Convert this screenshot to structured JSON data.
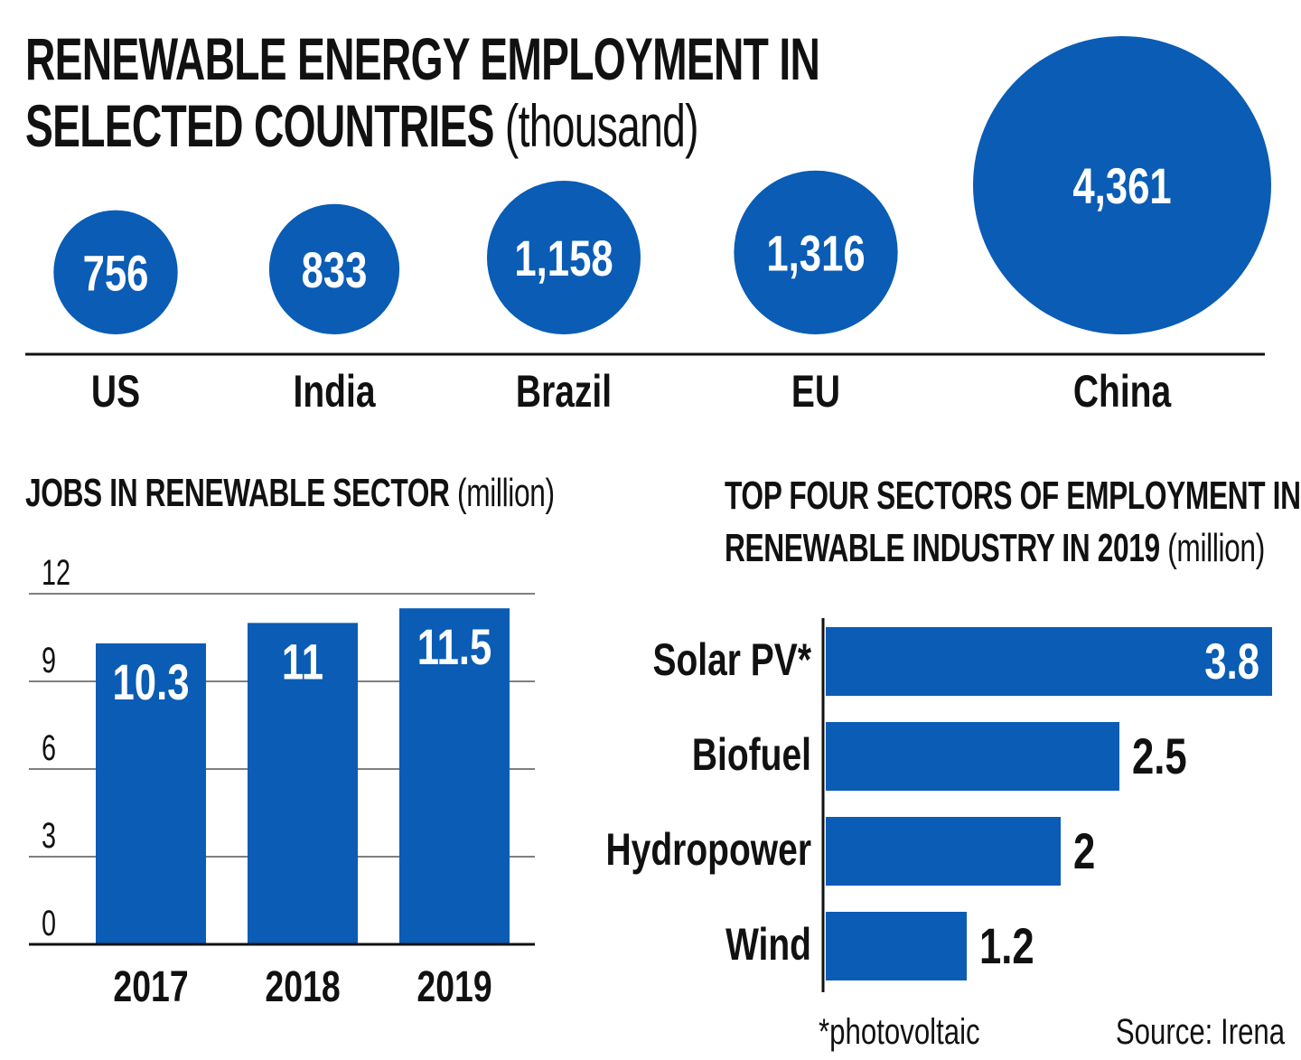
{
  "colors": {
    "accent": "#0a5cb5",
    "text": "#111111",
    "bar_label": "#ffffff"
  },
  "titles": {
    "main_bold_line1": "RENEWABLE ENERGY EMPLOYMENT IN",
    "main_bold_line2": "SELECTED COUNTRIES",
    "main_unit": "(thousand)",
    "bar_bold": "JOBS IN RENEWABLE SECTOR",
    "bar_unit": "(million)",
    "hbar_bold_line1": "TOP FOUR SECTORS OF EMPLOYMENT IN",
    "hbar_bold_line2": "RENEWABLE INDUSTRY IN 2019",
    "hbar_unit": "(million)"
  },
  "footnote": "*photovoltaic",
  "source": "Source: Irena",
  "chart_data": [
    {
      "type": "bubble",
      "title": "RENEWABLE ENERGY EMPLOYMENT IN SELECTED COUNTRIES (thousand)",
      "categories": [
        "US",
        "India",
        "Brazil",
        "EU",
        "China"
      ],
      "values": [
        756,
        833,
        1158,
        1316,
        4361
      ],
      "labels": [
        "756",
        "833",
        "1,158",
        "1,316",
        "4,361"
      ]
    },
    {
      "type": "bar",
      "title": "JOBS IN RENEWABLE SECTOR (million)",
      "categories": [
        "2017",
        "2018",
        "2019"
      ],
      "values": [
        10.3,
        11,
        11.5
      ],
      "labels": [
        "10.3",
        "11",
        "11.5"
      ],
      "ylim": [
        0,
        12
      ],
      "yticks": [
        "0",
        "3",
        "6",
        "9",
        "12"
      ],
      "grid": true
    },
    {
      "type": "bar",
      "orientation": "horizontal",
      "title": "TOP FOUR SECTORS OF EMPLOYMENT IN RENEWABLE INDUSTRY IN 2019 (million)",
      "categories": [
        "Solar PV*",
        "Biofuel",
        "Hydropower",
        "Wind"
      ],
      "values": [
        3.8,
        2.5,
        2,
        1.2
      ],
      "labels": [
        "3.8",
        "2.5",
        "2",
        "1.2"
      ]
    }
  ]
}
